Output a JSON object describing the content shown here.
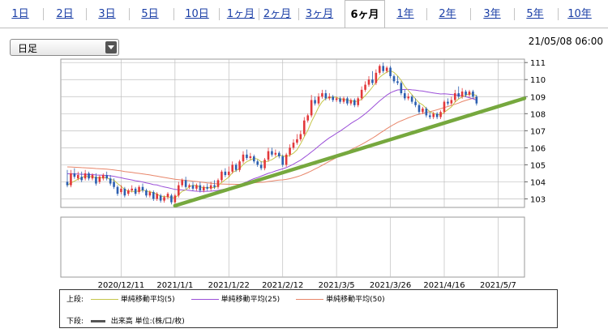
{
  "tabs": [
    {
      "label": "1日",
      "active": false
    },
    {
      "label": "2日",
      "active": false
    },
    {
      "label": "3日",
      "active": false
    },
    {
      "label": "5日",
      "active": false
    },
    {
      "label": "10日",
      "active": false
    },
    {
      "label": "1ヶ月",
      "active": false
    },
    {
      "label": "2ヶ月",
      "active": false
    },
    {
      "label": "3ヶ月",
      "active": false
    },
    {
      "label": "6ヶ月",
      "active": true
    },
    {
      "label": "1年",
      "active": false
    },
    {
      "label": "2年",
      "active": false
    },
    {
      "label": "3年",
      "active": false
    },
    {
      "label": "5年",
      "active": false
    },
    {
      "label": "10年",
      "active": false
    }
  ],
  "period_select": {
    "value": "日足"
  },
  "timestamp": "21/05/08 06:00",
  "colors": {
    "candle_up": "#e2383a",
    "candle_down": "#2c5fb0",
    "ma5": "#c6c64a",
    "ma25": "#9b4fd8",
    "ma50": "#e8866a",
    "trendline": "#76a83e",
    "grid": "#bfbfbf",
    "tab_link": "#1a3ea6"
  },
  "chart_data": {
    "type": "candlestick",
    "title": "",
    "xlabel": "",
    "ylabel": "",
    "ylim": [
      102.5,
      111.2
    ],
    "yticks": [
      "111",
      "110",
      "109",
      "108",
      "107",
      "106",
      "105",
      "104",
      "103"
    ],
    "ytick_values": [
      111,
      110,
      109,
      108,
      107,
      106,
      105,
      104,
      103
    ],
    "xtick_labels": [
      "2020/12/11",
      "2021/1/1",
      "2021/1/22",
      "2021/2/12",
      "2021/3/5",
      "2021/3/26",
      "2021/4/16",
      "2021/5/7"
    ],
    "xtick_index": [
      15,
      30,
      45,
      60,
      75,
      90,
      105,
      120
    ],
    "candles": [
      [
        104.0,
        103.8,
        104.7
      ],
      [
        103.8,
        104.5,
        104.7
      ],
      [
        104.5,
        104.3,
        104.8
      ],
      [
        104.2,
        104.4,
        104.6
      ],
      [
        104.3,
        104.1,
        104.6
      ],
      [
        104.2,
        104.5,
        104.7
      ],
      [
        104.5,
        104.2,
        104.6
      ],
      [
        104.2,
        104.4,
        104.5
      ],
      [
        104.3,
        103.9,
        104.5
      ],
      [
        104.0,
        104.3,
        104.4
      ],
      [
        104.2,
        104.4,
        104.5
      ],
      [
        104.4,
        104.2,
        104.6
      ],
      [
        104.2,
        103.9,
        104.4
      ],
      [
        104.0,
        103.7,
        104.2
      ],
      [
        103.7,
        103.3,
        103.8
      ],
      [
        103.4,
        103.6,
        103.8
      ],
      [
        103.6,
        103.2,
        103.7
      ],
      [
        103.3,
        103.5,
        103.6
      ],
      [
        103.5,
        103.6,
        103.8
      ],
      [
        103.6,
        103.3,
        103.7
      ],
      [
        103.4,
        103.7,
        103.8
      ],
      [
        103.7,
        103.5,
        103.9
      ],
      [
        103.5,
        103.2,
        103.6
      ],
      [
        103.2,
        103.4,
        103.5
      ],
      [
        103.4,
        103.0,
        103.5
      ],
      [
        103.0,
        103.3,
        103.4
      ],
      [
        103.2,
        102.9,
        103.3
      ],
      [
        102.9,
        103.1,
        103.2
      ],
      [
        103.1,
        103.3,
        103.4
      ],
      [
        103.2,
        102.8,
        103.3
      ],
      [
        102.8,
        103.2,
        103.3
      ],
      [
        103.2,
        103.8,
        104.0
      ],
      [
        103.8,
        104.1,
        104.2
      ],
      [
        104.1,
        103.7,
        104.3
      ],
      [
        103.7,
        103.8,
        103.9
      ],
      [
        103.8,
        103.6,
        104.0
      ],
      [
        103.6,
        103.8,
        103.9
      ],
      [
        103.8,
        103.5,
        104.0
      ],
      [
        103.5,
        103.7,
        103.8
      ],
      [
        103.7,
        103.6,
        103.9
      ],
      [
        103.6,
        103.8,
        104.0
      ],
      [
        103.8,
        103.7,
        104.1
      ],
      [
        103.7,
        104.1,
        104.2
      ],
      [
        104.1,
        104.6,
        104.7
      ],
      [
        104.6,
        104.4,
        104.8
      ],
      [
        104.4,
        104.6,
        104.9
      ],
      [
        104.6,
        105.0,
        105.2
      ],
      [
        105.0,
        104.7,
        105.1
      ],
      [
        104.7,
        105.2,
        105.3
      ],
      [
        105.2,
        105.6,
        105.8
      ],
      [
        105.6,
        105.4,
        105.9
      ],
      [
        105.4,
        105.5,
        105.7
      ],
      [
        105.5,
        105.2,
        105.6
      ],
      [
        105.2,
        105.0,
        105.3
      ],
      [
        105.0,
        104.8,
        105.2
      ],
      [
        104.8,
        105.3,
        105.4
      ],
      [
        105.3,
        105.8,
        106.0
      ],
      [
        105.8,
        105.6,
        106.0
      ],
      [
        105.6,
        105.7,
        105.9
      ],
      [
        105.7,
        105.5,
        105.8
      ],
      [
        105.5,
        105.0,
        105.6
      ],
      [
        105.0,
        105.6,
        105.7
      ],
      [
        105.6,
        106.0,
        106.2
      ],
      [
        106.0,
        106.3,
        106.5
      ],
      [
        106.3,
        106.5,
        106.8
      ],
      [
        106.5,
        106.8,
        107.0
      ],
      [
        106.8,
        107.6,
        107.8
      ],
      [
        107.6,
        107.9,
        108.0
      ],
      [
        107.9,
        108.8,
        109.1
      ],
      [
        108.8,
        108.6,
        109.0
      ],
      [
        108.6,
        109.0,
        109.2
      ],
      [
        109.0,
        109.2,
        109.4
      ],
      [
        109.2,
        108.9,
        109.4
      ],
      [
        108.9,
        109.0,
        109.2
      ],
      [
        109.0,
        108.8,
        109.1
      ],
      [
        108.8,
        108.9,
        109.0
      ],
      [
        108.9,
        108.7,
        109.0
      ],
      [
        108.7,
        108.9,
        109.0
      ],
      [
        108.9,
        108.6,
        109.0
      ],
      [
        108.6,
        108.8,
        108.9
      ],
      [
        108.8,
        108.5,
        108.9
      ],
      [
        108.5,
        108.9,
        109.0
      ],
      [
        108.9,
        109.4,
        109.6
      ],
      [
        109.4,
        109.7,
        109.9
      ],
      [
        109.7,
        110.0,
        110.2
      ],
      [
        110.0,
        109.8,
        110.5
      ],
      [
        109.8,
        110.4,
        110.6
      ],
      [
        110.4,
        110.8,
        110.9
      ],
      [
        110.8,
        110.5,
        111.0
      ],
      [
        110.5,
        110.7,
        110.8
      ],
      [
        110.7,
        110.2,
        110.8
      ],
      [
        110.2,
        109.9,
        110.3
      ],
      [
        109.9,
        109.8,
        110.2
      ],
      [
        109.8,
        109.2,
        109.9
      ],
      [
        109.2,
        108.9,
        109.4
      ],
      [
        108.9,
        109.0,
        109.2
      ],
      [
        109.0,
        108.7,
        109.1
      ],
      [
        108.7,
        108.5,
        108.9
      ],
      [
        108.5,
        108.1,
        108.6
      ],
      [
        108.1,
        108.3,
        108.4
      ],
      [
        108.3,
        107.9,
        108.4
      ],
      [
        107.9,
        107.8,
        108.1
      ],
      [
        107.8,
        108.0,
        108.1
      ],
      [
        108.0,
        107.8,
        108.1
      ],
      [
        107.8,
        108.1,
        108.2
      ],
      [
        108.1,
        108.7,
        108.8
      ],
      [
        108.7,
        108.6,
        108.9
      ],
      [
        108.6,
        108.8,
        109.0
      ],
      [
        108.8,
        109.2,
        109.4
      ],
      [
        109.2,
        109.0,
        109.6
      ],
      [
        109.0,
        109.3,
        109.5
      ],
      [
        109.3,
        109.1,
        109.4
      ],
      [
        109.1,
        109.3,
        109.4
      ],
      [
        109.3,
        109.0,
        109.4
      ],
      [
        109.0,
        108.6,
        109.1
      ]
    ],
    "trendline": {
      "from": [
        30,
        102.6
      ],
      "to": [
        126,
        108.9
      ],
      "color": "#76a83e"
    },
    "series": [
      {
        "name": "単純移動平均(5)",
        "color": "#c6c64a"
      },
      {
        "name": "単純移動平均(25)",
        "color": "#9b4fd8"
      },
      {
        "name": "単純移動平均(50)",
        "color": "#e8866a"
      }
    ]
  },
  "legend": {
    "upper_label": "上段:",
    "items": [
      {
        "label": "単純移動平均(5)",
        "color": "#c6c64a"
      },
      {
        "label": "単純移動平均(25)",
        "color": "#9b4fd8"
      },
      {
        "label": "単純移動平均(50)",
        "color": "#e8866a"
      }
    ],
    "lower_label": "下段:",
    "lower_item": "出来高 単位:(株/口/枚)"
  }
}
